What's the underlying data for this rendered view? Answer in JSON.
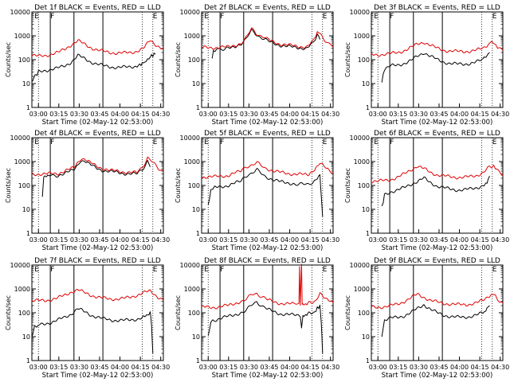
{
  "chart_data": [
    {
      "type": "line",
      "title": "Det 1f BLACK = Events, RED = LLD",
      "xlabel": "Start Time (02-May-12 02:53:00)",
      "ylabel": "Counts/sec",
      "yscale": "log",
      "ylim": [
        1,
        10000
      ],
      "xticks": [
        "03:00",
        "03:15",
        "03:30",
        "03:45",
        "04:00",
        "04:15",
        "04:30"
      ],
      "yticks": [
        "1",
        "10",
        "100",
        "1000",
        "10000"
      ],
      "flags": [
        "E",
        "F",
        "E"
      ],
      "series": [
        {
          "name": "Events",
          "color": "#000000",
          "x": [
            0.0,
            0.03,
            0.05,
            0.1,
            0.15,
            0.2,
            0.25,
            0.3,
            0.35,
            0.4,
            0.45,
            0.5,
            0.55,
            0.6,
            0.65,
            0.7,
            0.75,
            0.8,
            0.82,
            0.84,
            0.86,
            0.88,
            0.9,
            0.92,
            0.94
          ],
          "y": [
            12,
            22,
            30,
            35,
            40,
            45,
            55,
            80,
            150,
            110,
            80,
            65,
            55,
            50,
            48,
            48,
            50,
            55,
            60,
            70,
            80,
            100,
            130,
            160,
            170
          ]
        },
        {
          "name": "LLD",
          "color": "#e00000",
          "x": [
            0.0,
            0.05,
            0.1,
            0.15,
            0.2,
            0.25,
            0.3,
            0.35,
            0.4,
            0.45,
            0.5,
            0.55,
            0.6,
            0.65,
            0.7,
            0.75,
            0.8,
            0.85,
            0.9,
            0.95,
            1.0
          ],
          "y": [
            150,
            140,
            150,
            170,
            200,
            280,
            420,
            620,
            450,
            320,
            250,
            220,
            200,
            190,
            190,
            200,
            230,
            300,
            650,
            400,
            280
          ]
        }
      ]
    },
    {
      "type": "line",
      "title": "Det 2f BLACK = Events, RED = LLD",
      "xlabel": "Start Time (02-May-12 02:53:00)",
      "ylabel": "Counts/sec",
      "yscale": "log",
      "ylim": [
        1,
        10000
      ],
      "xticks": [
        "03:00",
        "03:15",
        "03:30",
        "03:45",
        "04:00",
        "04:15",
        "04:30"
      ],
      "yticks": [
        "1",
        "10",
        "100",
        "1000",
        "10000"
      ],
      "flags": [
        "E",
        "F",
        "E"
      ],
      "series": [
        {
          "name": "Events",
          "color": "#000000",
          "x": [
            0.08,
            0.09,
            0.12,
            0.2,
            0.3,
            0.38,
            0.42,
            0.46,
            0.5,
            0.55,
            0.6,
            0.7,
            0.8,
            0.85,
            0.88,
            0.9
          ],
          "y": [
            100,
            250,
            280,
            300,
            450,
            1600,
            1100,
            800,
            600,
            480,
            400,
            330,
            300,
            500,
            1200,
            700
          ]
        },
        {
          "name": "LLD",
          "color": "#e00000",
          "x": [
            0.0,
            0.1,
            0.2,
            0.3,
            0.38,
            0.42,
            0.46,
            0.5,
            0.55,
            0.6,
            0.7,
            0.8,
            0.85,
            0.88,
            0.92,
            0.96,
            1.0
          ],
          "y": [
            320,
            320,
            340,
            480,
            1900,
            1200,
            950,
            700,
            550,
            450,
            380,
            340,
            600,
            1500,
            900,
            500,
            350
          ]
        }
      ]
    },
    {
      "type": "line",
      "title": "Det 3f BLACK = Events, RED = LLD",
      "xlabel": "Start Time (02-May-12 02:53:00)",
      "ylabel": "Counts/sec",
      "yscale": "log",
      "ylim": [
        1,
        10000
      ],
      "xticks": [
        "03:00",
        "03:15",
        "03:30",
        "03:45",
        "04:00",
        "04:15",
        "04:30"
      ],
      "yticks": [
        "1",
        "10",
        "100",
        "1000",
        "10000"
      ],
      "flags": [
        "E",
        "F",
        "E"
      ],
      "series": [
        {
          "name": "Events",
          "color": "#000000",
          "x": [
            0.08,
            0.1,
            0.15,
            0.2,
            0.25,
            0.3,
            0.35,
            0.4,
            0.45,
            0.5,
            0.55,
            0.6,
            0.65,
            0.7,
            0.75,
            0.8,
            0.85,
            0.88,
            0.9
          ],
          "y": [
            12,
            40,
            55,
            60,
            70,
            90,
            140,
            200,
            140,
            100,
            80,
            70,
            65,
            65,
            70,
            80,
            100,
            150,
            200
          ]
        },
        {
          "name": "LLD",
          "color": "#e00000",
          "x": [
            0.0,
            0.05,
            0.1,
            0.15,
            0.2,
            0.25,
            0.3,
            0.35,
            0.4,
            0.45,
            0.5,
            0.55,
            0.6,
            0.65,
            0.7,
            0.75,
            0.8,
            0.85,
            0.9,
            0.93,
            0.96,
            1.0
          ],
          "y": [
            160,
            160,
            170,
            180,
            200,
            240,
            320,
            450,
            550,
            400,
            300,
            250,
            230,
            220,
            220,
            230,
            250,
            300,
            500,
            550,
            350,
            250
          ]
        }
      ]
    },
    {
      "type": "line",
      "title": "Det 4f BLACK = Events, RED = LLD",
      "xlabel": "Start Time (02-May-12 02:53:00)",
      "ylabel": "Counts/sec",
      "yscale": "log",
      "ylim": [
        1,
        10000
      ],
      "xticks": [
        "03:00",
        "03:15",
        "03:30",
        "03:45",
        "04:00",
        "04:15",
        "04:30"
      ],
      "yticks": [
        "1",
        "10",
        "100",
        "1000",
        "10000"
      ],
      "flags": [
        "E",
        "F",
        "E"
      ],
      "series": [
        {
          "name": "Events",
          "color": "#000000",
          "x": [
            0.08,
            0.09,
            0.12,
            0.2,
            0.3,
            0.36,
            0.4,
            0.45,
            0.5,
            0.55,
            0.6,
            0.7,
            0.8,
            0.84,
            0.88,
            0.9
          ],
          "y": [
            40,
            200,
            250,
            270,
            400,
            800,
            1100,
            700,
            500,
            420,
            380,
            320,
            300,
            450,
            1100,
            600
          ]
        },
        {
          "name": "LLD",
          "color": "#e00000",
          "x": [
            0.0,
            0.1,
            0.2,
            0.3,
            0.36,
            0.4,
            0.45,
            0.5,
            0.55,
            0.6,
            0.7,
            0.8,
            0.84,
            0.88,
            0.92,
            0.96,
            1.0
          ],
          "y": [
            300,
            300,
            320,
            500,
            1000,
            1300,
            850,
            600,
            500,
            420,
            370,
            340,
            550,
            1500,
            900,
            550,
            400
          ]
        }
      ]
    },
    {
      "type": "line",
      "title": "Det 5f BLACK = Events, RED = LLD",
      "xlabel": "Start Time (02-May-12 02:53:00)",
      "ylabel": "Counts/sec",
      "yscale": "log",
      "ylim": [
        1,
        10000
      ],
      "xticks": [
        "03:00",
        "03:15",
        "03:30",
        "03:45",
        "04:00",
        "04:15",
        "04:30"
      ],
      "yticks": [
        "1",
        "10",
        "100",
        "1000",
        "10000"
      ],
      "flags": [
        "E",
        "F",
        "E"
      ],
      "series": [
        {
          "name": "Events",
          "color": "#000000",
          "x": [
            0.05,
            0.07,
            0.1,
            0.2,
            0.3,
            0.38,
            0.42,
            0.46,
            0.5,
            0.55,
            0.6,
            0.7,
            0.78,
            0.82,
            0.86,
            0.88,
            0.9,
            0.91,
            0.92
          ],
          "y": [
            15,
            60,
            80,
            100,
            150,
            350,
            450,
            300,
            220,
            170,
            140,
            120,
            110,
            120,
            150,
            200,
            280,
            40,
            5
          ]
        },
        {
          "name": "LLD",
          "color": "#e00000",
          "x": [
            0.0,
            0.1,
            0.2,
            0.3,
            0.38,
            0.42,
            0.46,
            0.5,
            0.55,
            0.6,
            0.7,
            0.8,
            0.86,
            0.9,
            0.95,
            1.0
          ],
          "y": [
            230,
            230,
            260,
            400,
            750,
            900,
            650,
            500,
            400,
            350,
            300,
            280,
            400,
            850,
            500,
            350
          ]
        }
      ]
    },
    {
      "type": "line",
      "title": "Det 6f BLACK = Events, RED = LLD",
      "xlabel": "Start Time (02-May-12 02:53:00)",
      "ylabel": "Counts/sec",
      "yscale": "log",
      "ylim": [
        1,
        10000
      ],
      "xticks": [
        "03:00",
        "03:15",
        "03:30",
        "03:45",
        "04:00",
        "04:15",
        "04:30"
      ],
      "yticks": [
        "1",
        "10",
        "100",
        "1000",
        "10000"
      ],
      "flags": [
        "E",
        "F",
        "E"
      ],
      "series": [
        {
          "name": "Events",
          "color": "#000000",
          "x": [
            0.08,
            0.1,
            0.15,
            0.2,
            0.25,
            0.3,
            0.35,
            0.4,
            0.45,
            0.5,
            0.55,
            0.6,
            0.65,
            0.7,
            0.75,
            0.8,
            0.85,
            0.88,
            0.9
          ],
          "y": [
            12,
            40,
            55,
            65,
            80,
            110,
            150,
            200,
            130,
            95,
            80,
            70,
            65,
            65,
            70,
            80,
            100,
            140,
            250
          ]
        },
        {
          "name": "LLD",
          "color": "#e00000",
          "x": [
            0.0,
            0.05,
            0.1,
            0.15,
            0.2,
            0.25,
            0.3,
            0.35,
            0.4,
            0.45,
            0.5,
            0.55,
            0.6,
            0.65,
            0.7,
            0.75,
            0.8,
            0.85,
            0.9,
            0.93,
            0.96,
            1.0
          ],
          "y": [
            150,
            150,
            160,
            180,
            220,
            300,
            450,
            650,
            500,
            350,
            280,
            250,
            230,
            220,
            220,
            230,
            260,
            350,
            600,
            700,
            400,
            280
          ]
        }
      ]
    },
    {
      "type": "line",
      "title": "Det 7f BLACK = Events, RED = LLD",
      "xlabel": "Start Time (02-May-12 02:53:00)",
      "ylabel": "Counts/sec",
      "yscale": "log",
      "ylim": [
        1,
        10000
      ],
      "xticks": [
        "03:00",
        "03:15",
        "03:30",
        "03:45",
        "04:00",
        "04:15",
        "04:30"
      ],
      "yticks": [
        "1",
        "10",
        "100",
        "1000",
        "10000"
      ],
      "flags": [
        "E",
        "F",
        "E"
      ],
      "series": [
        {
          "name": "Events",
          "color": "#000000",
          "x": [
            0.0,
            0.02,
            0.05,
            0.1,
            0.15,
            0.2,
            0.25,
            0.3,
            0.35,
            0.4,
            0.45,
            0.5,
            0.55,
            0.6,
            0.65,
            0.7,
            0.75,
            0.8,
            0.85,
            0.88,
            0.9,
            0.91,
            0.92
          ],
          "y": [
            10,
            25,
            30,
            35,
            40,
            50,
            65,
            90,
            150,
            110,
            80,
            65,
            55,
            50,
            48,
            48,
            50,
            55,
            65,
            80,
            100,
            30,
            2
          ]
        },
        {
          "name": "LLD",
          "color": "#e00000",
          "x": [
            0.0,
            0.05,
            0.1,
            0.15,
            0.2,
            0.25,
            0.3,
            0.35,
            0.4,
            0.45,
            0.5,
            0.55,
            0.6,
            0.65,
            0.7,
            0.75,
            0.8,
            0.85,
            0.9,
            0.95,
            1.0
          ],
          "y": [
            320,
            320,
            330,
            360,
            420,
            550,
            750,
            900,
            700,
            550,
            450,
            400,
            380,
            380,
            400,
            450,
            550,
            700,
            800,
            500,
            350
          ]
        }
      ]
    },
    {
      "type": "line",
      "title": "Det 8f BLACK = Events, RED = LLD",
      "xlabel": "Start Time (02-May-12 02:53:00)",
      "ylabel": "Counts/sec",
      "yscale": "log",
      "ylim": [
        1,
        10000
      ],
      "xticks": [
        "03:00",
        "03:15",
        "03:30",
        "03:45",
        "04:00",
        "04:15",
        "04:30"
      ],
      "yticks": [
        "1",
        "10",
        "100",
        "1000",
        "10000"
      ],
      "flags": [
        "E",
        "F",
        "E"
      ],
      "series": [
        {
          "name": "Events",
          "color": "#000000",
          "x": [
            0.05,
            0.07,
            0.1,
            0.2,
            0.3,
            0.38,
            0.42,
            0.46,
            0.5,
            0.55,
            0.6,
            0.7,
            0.75,
            0.76,
            0.77,
            0.8,
            0.86,
            0.88,
            0.9,
            0.91,
            0.92
          ],
          "y": [
            10,
            40,
            50,
            70,
            100,
            200,
            300,
            180,
            140,
            110,
            90,
            80,
            80,
            20,
            80,
            85,
            110,
            150,
            200,
            40,
            2
          ]
        },
        {
          "name": "LLD",
          "color": "#e00000",
          "x": [
            0.0,
            0.1,
            0.2,
            0.3,
            0.38,
            0.42,
            0.46,
            0.5,
            0.55,
            0.6,
            0.7,
            0.74,
            0.745,
            0.75,
            0.76,
            0.765,
            0.77,
            0.8,
            0.86,
            0.9,
            0.95,
            1.0
          ],
          "y": [
            170,
            170,
            200,
            300,
            550,
            650,
            450,
            350,
            280,
            250,
            230,
            230,
            10000,
            230,
            10000,
            230,
            230,
            240,
            300,
            700,
            400,
            260
          ]
        }
      ]
    },
    {
      "type": "line",
      "title": "Det 9f BLACK = Events, RED = LLD",
      "xlabel": "Start Time (02-May-12 02:53:00)",
      "ylabel": "Counts/sec",
      "yscale": "log",
      "ylim": [
        1,
        10000
      ],
      "xticks": [
        "03:00",
        "03:15",
        "03:30",
        "03:45",
        "04:00",
        "04:15",
        "04:30"
      ],
      "yticks": [
        "1",
        "10",
        "100",
        "1000",
        "10000"
      ],
      "flags": [
        "E",
        "F",
        "E"
      ],
      "series": [
        {
          "name": "Events",
          "color": "#000000",
          "x": [
            0.08,
            0.1,
            0.15,
            0.2,
            0.25,
            0.3,
            0.35,
            0.4,
            0.45,
            0.5,
            0.55,
            0.6,
            0.65,
            0.7,
            0.75,
            0.8,
            0.85,
            0.88,
            0.9
          ],
          "y": [
            10,
            50,
            60,
            65,
            75,
            100,
            150,
            220,
            140,
            100,
            80,
            70,
            65,
            65,
            70,
            80,
            100,
            150,
            200
          ]
        },
        {
          "name": "LLD",
          "color": "#e00000",
          "x": [
            0.0,
            0.05,
            0.1,
            0.15,
            0.2,
            0.25,
            0.3,
            0.35,
            0.4,
            0.45,
            0.5,
            0.55,
            0.6,
            0.65,
            0.7,
            0.75,
            0.8,
            0.85,
            0.9,
            0.93,
            0.96,
            1.0
          ],
          "y": [
            170,
            170,
            180,
            200,
            230,
            300,
            420,
            600,
            450,
            330,
            280,
            250,
            230,
            220,
            220,
            230,
            260,
            330,
            550,
            600,
            350,
            260
          ]
        }
      ]
    }
  ]
}
